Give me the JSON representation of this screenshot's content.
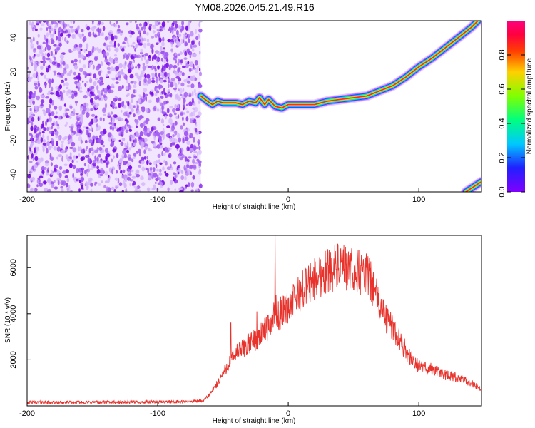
{
  "figure_title": "YM08.2026.045.21.49.R16",
  "colors": {
    "snr_line": "#e8322c",
    "spectrogram_scatter": "#8a2be2",
    "axis": "#000000"
  },
  "chart_data": [
    {
      "type": "heatmap",
      "xlabel": "Height of straight line (km)",
      "ylabel": "Frequency (Hz)",
      "xlim": [
        -200,
        148
      ],
      "ylim": [
        -50,
        50
      ],
      "xticks": [
        -200,
        -100,
        0,
        100
      ],
      "yticks": [
        -40,
        -20,
        0,
        20,
        40
      ],
      "colorbar": {
        "label": "Normalized spectral amplitude",
        "range": [
          0,
          1
        ],
        "ticks": [
          0.0,
          0.2,
          0.4,
          0.6,
          0.8
        ],
        "colormap": "rainbow (violet-blue-cyan-green-yellow-orange-red-magenta)"
      },
      "noise_region": {
        "x_range": [
          -200,
          -67
        ],
        "y_range": [
          -50,
          50
        ],
        "amplitude": 0.2
      },
      "ridge": {
        "x": [
          -67,
          -62,
          -58,
          -54,
          -50,
          -45,
          -40,
          -35,
          -30,
          -25,
          -22,
          -18,
          -15,
          -10,
          -5,
          0,
          5,
          10,
          20,
          30,
          40,
          50,
          60,
          70,
          80,
          90,
          100,
          110,
          120,
          130,
          140,
          148
        ],
        "y": [
          6,
          3,
          1,
          3,
          2,
          2,
          2,
          1,
          3,
          2,
          5,
          1,
          4,
          0,
          -1,
          1,
          1,
          1,
          1,
          3,
          4,
          5,
          6,
          9,
          12,
          17,
          23,
          28,
          34,
          40,
          46,
          52
        ]
      },
      "wrap_ridge": {
        "x": [
          136,
          148
        ],
        "y": [
          -50,
          -44
        ]
      }
    },
    {
      "type": "line",
      "xlabel": "Height of straight line (km)",
      "ylabel": "SNR (10 * v/v)",
      "xlim": [
        -200,
        148
      ],
      "ylim": [
        0,
        7400
      ],
      "xticks": [
        -200,
        -100,
        0,
        100
      ],
      "yticks": [
        2000,
        4000,
        6000
      ],
      "series": [
        {
          "x": [
            -200,
            -180,
            -160,
            -140,
            -120,
            -100,
            -80,
            -65,
            -60,
            -55,
            -50,
            -45,
            -40,
            -35,
            -30,
            -25,
            -20,
            -15,
            -12,
            -10,
            -8,
            -5,
            0,
            5,
            10,
            15,
            20,
            25,
            30,
            35,
            40,
            45,
            50,
            55,
            60,
            65,
            70,
            75,
            80,
            85,
            90,
            95,
            100,
            110,
            120,
            130,
            140,
            148
          ],
          "y": [
            150,
            150,
            150,
            160,
            160,
            170,
            180,
            220,
            500,
            900,
            1400,
            1900,
            2300,
            2500,
            2700,
            2900,
            3200,
            3400,
            3800,
            4200,
            3900,
            4100,
            4300,
            4600,
            5000,
            5300,
            5500,
            5700,
            5900,
            6000,
            6000,
            5900,
            5800,
            5800,
            5700,
            5200,
            4300,
            3800,
            3400,
            2900,
            2400,
            2000,
            1700,
            1600,
            1350,
            1200,
            1000,
            700
          ]
        }
      ],
      "spikes": [
        {
          "x": -10,
          "y": 7400
        },
        {
          "x": -44,
          "y": 3600
        },
        {
          "x": -24,
          "y": 4100
        }
      ]
    }
  ]
}
